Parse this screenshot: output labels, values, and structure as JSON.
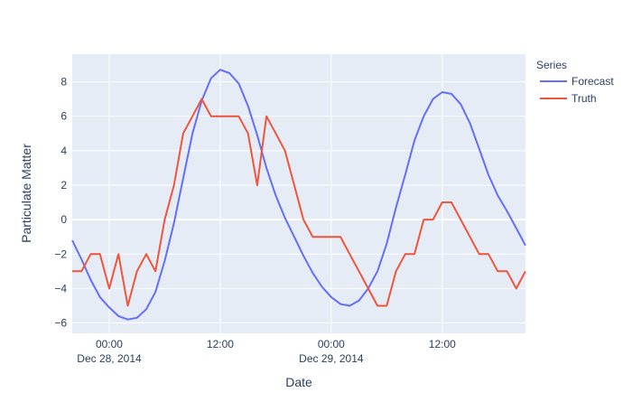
{
  "chart_data": {
    "type": "line",
    "title": "",
    "xlabel": "Date",
    "ylabel": "Particulate Matter",
    "x_tick_labels": [
      "00:00",
      "12:00",
      "00:00",
      "12:00"
    ],
    "x_tick_sublabels": [
      "Dec 28, 2014",
      "",
      "Dec 29, 2014",
      ""
    ],
    "x_tick_hours": [
      0,
      12,
      24,
      36
    ],
    "y_ticks": [
      -6,
      -4,
      -2,
      0,
      2,
      4,
      6,
      8
    ],
    "y_tick_labels": [
      "−6",
      "−4",
      "−2",
      "0",
      "2",
      "4",
      "6",
      "8"
    ],
    "xlim_hours": [
      -4,
      45
    ],
    "ylim": [
      -6.6,
      9.6
    ],
    "grid": true,
    "plot_background": "#E5ECF6",
    "legend_title": "Series",
    "legend_position": "right",
    "x_hours_from": "Dec 28, 2014 00:00",
    "series": [
      {
        "name": "Forecast",
        "color": "#636EFA",
        "x": [
          -4,
          -3,
          -2,
          -1,
          0,
          1,
          2,
          3,
          4,
          5,
          6,
          7,
          8,
          9,
          10,
          11,
          12,
          13,
          14,
          15,
          16,
          17,
          18,
          19,
          20,
          21,
          22,
          23,
          24,
          25,
          26,
          27,
          28,
          29,
          30,
          31,
          32,
          33,
          34,
          35,
          36,
          37,
          38,
          39,
          40,
          41,
          42,
          43,
          44,
          45
        ],
        "y": [
          -1.2,
          -2.3,
          -3.5,
          -4.5,
          -5.1,
          -5.6,
          -5.8,
          -5.7,
          -5.2,
          -4.2,
          -2.4,
          -0.2,
          2.4,
          5.0,
          6.9,
          8.2,
          8.7,
          8.5,
          7.9,
          6.6,
          4.9,
          3.0,
          1.4,
          0.1,
          -1.0,
          -2.1,
          -3.1,
          -3.9,
          -4.5,
          -4.9,
          -5.0,
          -4.7,
          -4.0,
          -3.0,
          -1.4,
          0.7,
          2.6,
          4.6,
          6.0,
          7.0,
          7.4,
          7.3,
          6.7,
          5.6,
          4.1,
          2.6,
          1.4,
          0.5,
          -0.5,
          -1.5
        ]
      },
      {
        "name": "Truth",
        "color": "#EF553B",
        "x": [
          -4,
          -3,
          -2,
          -1,
          0,
          1,
          2,
          3,
          4,
          5,
          6,
          7,
          8,
          9,
          10,
          11,
          12,
          13,
          14,
          15,
          16,
          17,
          18,
          19,
          20,
          21,
          22,
          23,
          24,
          25,
          26,
          27,
          28,
          29,
          30,
          31,
          32,
          33,
          34,
          35,
          36,
          37,
          38,
          39,
          40,
          41,
          42,
          43,
          44,
          45
        ],
        "y": [
          -3,
          -3,
          -2,
          -2,
          -4,
          -2,
          -5,
          -3,
          -2,
          -3,
          0,
          2,
          5,
          6,
          7,
          6,
          6,
          6,
          6,
          5,
          2,
          6,
          5,
          4,
          2,
          0,
          -1,
          -1,
          -1,
          -1,
          -2,
          -3,
          -4,
          -5,
          -5,
          -3,
          -2,
          -2,
          0,
          0,
          1,
          1,
          0,
          -1,
          -2,
          -2,
          -3,
          -3,
          -4,
          -3
        ]
      }
    ]
  }
}
